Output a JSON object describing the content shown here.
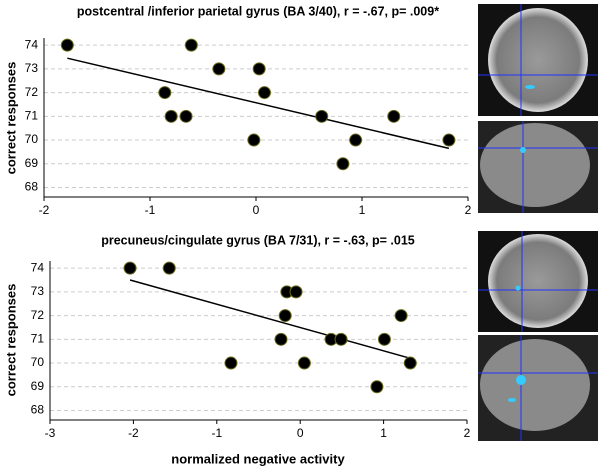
{
  "chart_data": [
    {
      "type": "scatter",
      "title": "postcentral /inferior parietal gyrus (BA 3/40), r = -.67, p= .009*",
      "ylabel": "correct responses",
      "x": [
        -1.78,
        -0.61,
        -0.35,
        0.03,
        0.08,
        -0.86,
        -0.8,
        -0.66,
        -0.02,
        0.62,
        0.94,
        0.82,
        1.3,
        1.82
      ],
      "values": [
        74,
        74,
        73,
        73,
        72,
        72,
        71,
        71,
        70,
        71,
        70,
        69,
        71,
        70
      ],
      "trendline": {
        "x": [
          -1.78,
          1.82
        ],
        "values": [
          73.45,
          69.65
        ]
      },
      "color": "#000000",
      "xlim": [
        -2,
        2
      ],
      "xticks": [
        -2,
        -1,
        0,
        1,
        2
      ],
      "ylim": [
        67.6,
        74.3
      ],
      "yticks": [
        68,
        69,
        70,
        71,
        72,
        73,
        74
      ],
      "grid": true
    },
    {
      "type": "scatter",
      "title": "precuneus/cingulate gyrus (BA 7/31), r = -.63, p= .015",
      "ylabel": "correct responses",
      "xlabel": "normalized negative activity",
      "x": [
        -2.04,
        -1.57,
        -0.16,
        -0.05,
        -0.18,
        -0.23,
        -0.83,
        0.05,
        0.37,
        0.49,
        1.01,
        1.21,
        1.32,
        0.92
      ],
      "values": [
        74,
        74,
        73,
        73,
        72,
        71,
        70,
        70,
        71,
        71,
        71,
        72,
        70,
        69
      ],
      "trendline": {
        "x": [
          -2.04,
          1.32
        ],
        "values": [
          73.5,
          70.2
        ]
      },
      "color": "#000000",
      "xlim": [
        -3,
        2
      ],
      "xticks": [
        -3,
        -2,
        -1,
        0,
        1,
        2
      ],
      "ylim": [
        67.6,
        74.3
      ],
      "yticks": [
        68,
        69,
        70,
        71,
        72,
        73,
        74
      ],
      "grid": true
    }
  ]
}
